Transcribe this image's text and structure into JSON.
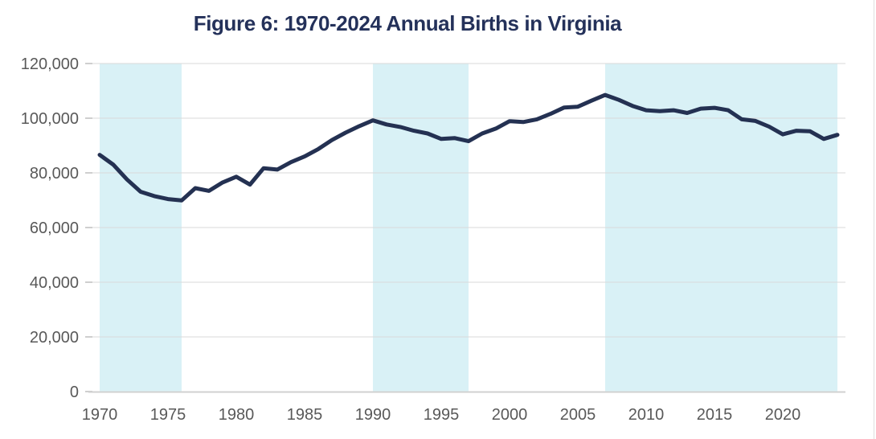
{
  "chart_data": {
    "type": "line",
    "title": "Figure 6: 1970-2024 Annual Births in Virginia",
    "xlabel": "",
    "ylabel": "",
    "x": [
      1970,
      1971,
      1972,
      1973,
      1974,
      1975,
      1976,
      1977,
      1978,
      1979,
      1980,
      1981,
      1982,
      1983,
      1984,
      1985,
      1986,
      1987,
      1988,
      1989,
      1990,
      1991,
      1992,
      1993,
      1994,
      1995,
      1996,
      1997,
      1998,
      1999,
      2000,
      2001,
      2002,
      2003,
      2004,
      2005,
      2006,
      2007,
      2008,
      2009,
      2010,
      2011,
      2012,
      2013,
      2014,
      2015,
      2016,
      2017,
      2018,
      2019,
      2020,
      2021,
      2022,
      2023,
      2024
    ],
    "series": [
      {
        "name": "Annual Births in Virginia",
        "values": [
          86600,
          83000,
          77600,
          73100,
          71500,
          70400,
          69900,
          74400,
          73400,
          76500,
          78600,
          75700,
          81700,
          81200,
          83900,
          86000,
          88700,
          92000,
          94700,
          97100,
          99200,
          97700,
          96800,
          95400,
          94400,
          92400,
          92700,
          91600,
          94400,
          96200,
          98900,
          98600,
          99600,
          101600,
          103900,
          104200,
          106400,
          108500,
          106700,
          104500,
          102900,
          102600,
          102900,
          101900,
          103500,
          103800,
          102900,
          99600,
          99000,
          96900,
          94100,
          95400,
          95200,
          92400,
          93900
        ]
      }
    ],
    "ylim": [
      0,
      120000
    ],
    "ytick_values": [
      0,
      20000,
      40000,
      60000,
      80000,
      100000,
      120000
    ],
    "xtick_values": [
      1970,
      1975,
      1980,
      1985,
      1990,
      1995,
      2000,
      2005,
      2010,
      2015,
      2020
    ],
    "grid": "horizontal-on",
    "legend": "none",
    "shaded_periods": [
      {
        "start": 1970,
        "end": 1976
      },
      {
        "start": 1990,
        "end": 1997
      },
      {
        "start": 2007,
        "end": 2024
      }
    ],
    "colors": {
      "line": "#243152",
      "band": "#d9f1f6",
      "gridline": "#d9d9d9",
      "axis_line": "#cfcfcf",
      "tick_mark": "#bfbfbf",
      "tick_label": "#595959",
      "title": "#24315a",
      "background": "#ffffff",
      "right_border": "#dedede"
    }
  }
}
